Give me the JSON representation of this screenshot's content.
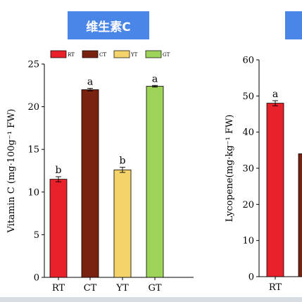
{
  "badges": {
    "left": "维生素C",
    "right": ""
  },
  "chart_data": [
    {
      "type": "bar",
      "categories": [
        "RT",
        "CT",
        "YT",
        "GT"
      ],
      "values": [
        11.5,
        22.0,
        12.6,
        22.4
      ],
      "errors": [
        0.3,
        0.15,
        0.3,
        0.1
      ],
      "significance": [
        "b",
        "a",
        "b",
        "a"
      ],
      "colors": [
        "#e8202a",
        "#7a2212",
        "#f5d36b",
        "#9ed35a"
      ],
      "legend": [
        "RT",
        "CT",
        "YT",
        "GT"
      ],
      "legend_position": "top",
      "ylabel": "Vitamin C (mg·100g⁻¹ FW)",
      "ylim": [
        0,
        25
      ],
      "yticks": [
        0,
        5,
        10,
        15,
        20,
        25
      ]
    },
    {
      "type": "bar",
      "categories": [
        "RT",
        "CT"
      ],
      "visible_category_labels": [
        "RT",
        "C"
      ],
      "values": [
        48.0,
        34.0
      ],
      "errors": [
        0.7,
        0
      ],
      "significance": [
        "a",
        ""
      ],
      "colors": [
        "#e8202a",
        "#7a2212"
      ],
      "ylabel": "Lycopene(mg·kg⁻¹ FW)",
      "ylim": [
        0,
        60
      ],
      "yticks": [
        0,
        10,
        20,
        30,
        40,
        50,
        60
      ]
    }
  ]
}
